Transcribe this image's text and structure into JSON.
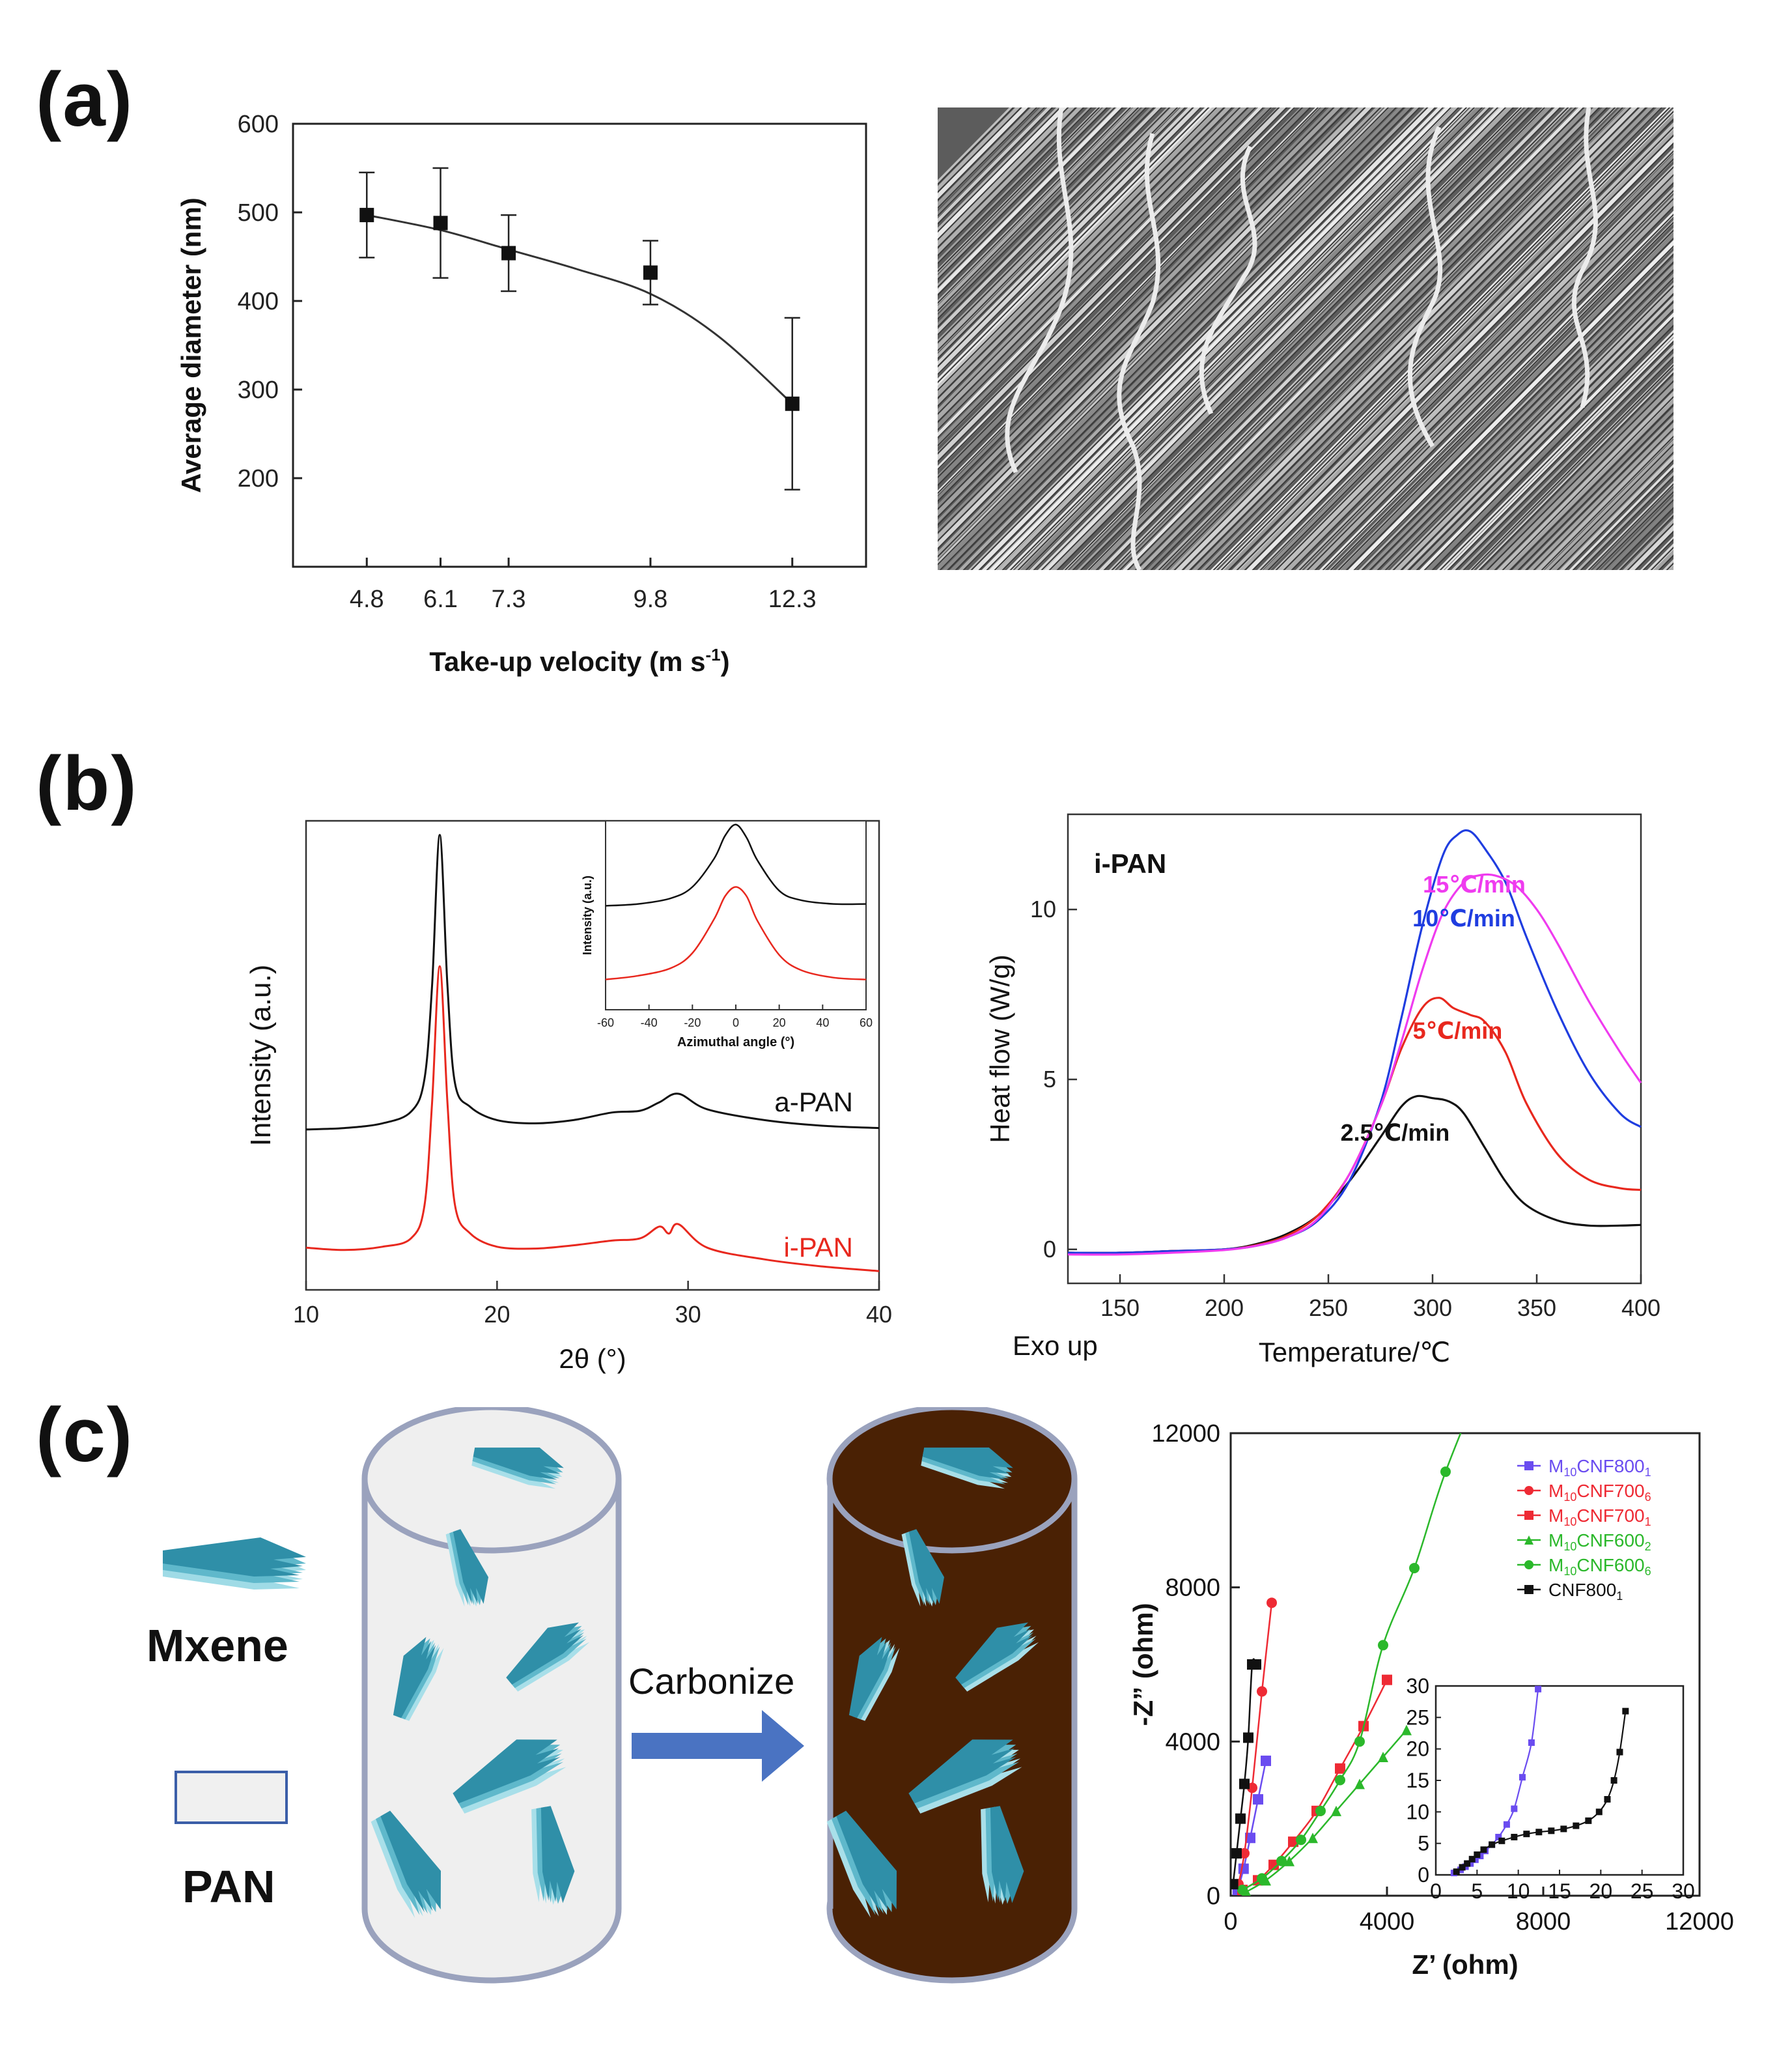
{
  "labels": {
    "a": "(a)",
    "b": "(b)",
    "c": "(c)"
  },
  "chart_data": [
    {
      "id": "diameter",
      "type": "scatter",
      "xlabel": "Take-up velocity (m s",
      "xlabel_sup": "-1",
      "xlabel_end": ")",
      "ylabel": "Average diameter (nm)",
      "xlim": [
        3.5,
        13.6
      ],
      "ylim": [
        100,
        600
      ],
      "xticks": [
        4.8,
        6.1,
        7.3,
        9.8,
        12.3
      ],
      "xtick_labels": [
        "4.8",
        "6.1",
        "7.3",
        "9.8",
        "12.3"
      ],
      "yticks": [
        200,
        300,
        400,
        500,
        600
      ],
      "x": [
        4.8,
        6.1,
        7.3,
        9.8,
        12.3
      ],
      "y": [
        497,
        488,
        454,
        432,
        284
      ],
      "err": [
        48,
        62,
        43,
        36,
        97
      ],
      "fit_x": [
        4.8,
        6.1,
        7.3,
        8.5,
        9.8,
        11.0,
        12.3
      ],
      "fit_y": [
        497,
        480,
        458,
        436,
        408,
        360,
        284
      ]
    },
    {
      "id": "xrd",
      "type": "line",
      "xlabel": "2θ (°)",
      "ylabel": "Intensity (a.u.)",
      "xlim": [
        10,
        40
      ],
      "ylim": [
        0,
        10
      ],
      "xticks": [
        10,
        20,
        30,
        40
      ],
      "series": [
        {
          "name": "a-PAN",
          "color": "#111111",
          "x": [
            10,
            12,
            14,
            15.5,
            16.2,
            16.6,
            17.0,
            17.4,
            17.8,
            18.6,
            20,
            22,
            24,
            26,
            27.5,
            28.5,
            29.5,
            31,
            34,
            37,
            40
          ],
          "y": [
            3.42,
            3.45,
            3.55,
            3.8,
            4.5,
            6.5,
            9.7,
            6.5,
            4.4,
            3.9,
            3.62,
            3.55,
            3.62,
            3.78,
            3.82,
            4.0,
            4.18,
            3.85,
            3.62,
            3.5,
            3.45
          ]
        },
        {
          "name": "i-PAN",
          "color": "#e8281e",
          "x": [
            10,
            12,
            14,
            15.5,
            16.2,
            16.6,
            17.0,
            17.4,
            17.8,
            18.6,
            20,
            22,
            24,
            26,
            27.5,
            28.5,
            29.0,
            29.5,
            31,
            34,
            37,
            40
          ],
          "y": [
            0.9,
            0.85,
            0.92,
            1.1,
            1.8,
            4.0,
            6.9,
            4.0,
            1.8,
            1.2,
            0.92,
            0.88,
            0.95,
            1.05,
            1.1,
            1.35,
            1.2,
            1.4,
            0.9,
            0.65,
            0.5,
            0.4
          ]
        }
      ]
    },
    {
      "id": "xrd-inset",
      "type": "line",
      "xlabel": "Azimuthal angle (°)",
      "ylabel": "Intensity (a.u.)",
      "xlim": [
        -60,
        60
      ],
      "ylim": [
        0,
        10
      ],
      "xticks": [
        -60,
        -40,
        -20,
        0,
        20,
        40,
        60
      ],
      "series": [
        {
          "name": "a-PAN",
          "color": "#111111",
          "x": [
            -60,
            -45,
            -30,
            -20,
            -10,
            -5,
            0,
            5,
            10,
            20,
            30,
            45,
            60
          ],
          "y": [
            5.5,
            5.6,
            5.9,
            6.5,
            8.0,
            9.2,
            9.8,
            9.1,
            7.9,
            6.3,
            5.8,
            5.6,
            5.6
          ]
        },
        {
          "name": "i-PAN",
          "color": "#e8281e",
          "x": [
            -60,
            -45,
            -30,
            -20,
            -10,
            -5,
            0,
            5,
            10,
            20,
            30,
            45,
            60
          ],
          "y": [
            1.6,
            1.8,
            2.2,
            3.0,
            4.8,
            6.0,
            6.5,
            6.0,
            4.7,
            2.9,
            2.1,
            1.7,
            1.6
          ]
        }
      ]
    },
    {
      "id": "dsc",
      "type": "line",
      "title": "i-PAN",
      "xlabel": "Temperature/℃",
      "ylabel": "Heat flow (W/g)",
      "footnote": "Exo up",
      "xlim": [
        125,
        400
      ],
      "ylim": [
        -1,
        12.8
      ],
      "xticks": [
        150,
        200,
        250,
        300,
        350,
        400
      ],
      "yticks": [
        0,
        5,
        10
      ],
      "series": [
        {
          "name": "2.5℃/min",
          "color": "#111111",
          "x": [
            125,
            150,
            175,
            200,
            215,
            230,
            245,
            260,
            275,
            285,
            292,
            300,
            308,
            315,
            325,
            335,
            345,
            360,
            375,
            390,
            400
          ],
          "y": [
            -0.1,
            -0.1,
            -0.05,
            0.0,
            0.15,
            0.45,
            1.0,
            2.0,
            3.3,
            4.2,
            4.5,
            4.45,
            4.35,
            4.0,
            3.0,
            2.0,
            1.3,
            0.85,
            0.7,
            0.7,
            0.72
          ]
        },
        {
          "name": "5℃/min",
          "color": "#e8281e",
          "x": [
            125,
            150,
            175,
            200,
            215,
            230,
            245,
            260,
            275,
            285,
            295,
            303,
            310,
            318,
            325,
            335,
            345,
            360,
            375,
            390,
            400
          ],
          "y": [
            -0.1,
            -0.1,
            -0.05,
            0.0,
            0.12,
            0.4,
            1.0,
            2.2,
            4.2,
            5.9,
            7.1,
            7.4,
            7.1,
            6.9,
            6.7,
            5.8,
            4.3,
            2.8,
            2.05,
            1.8,
            1.75
          ]
        },
        {
          "name": "10℃/min",
          "color": "#1f3de0",
          "x": [
            125,
            150,
            175,
            200,
            215,
            230,
            245,
            260,
            275,
            285,
            295,
            305,
            312,
            318,
            325,
            335,
            345,
            360,
            375,
            390,
            400
          ],
          "y": [
            -0.1,
            -0.1,
            -0.05,
            0.0,
            0.1,
            0.35,
            0.85,
            2.0,
            4.3,
            6.8,
            9.5,
            11.6,
            12.2,
            12.3,
            11.8,
            10.8,
            9.2,
            7.0,
            5.2,
            4.0,
            3.6
          ]
        },
        {
          "name": "15℃/min",
          "color": "#ef3bef",
          "x": [
            125,
            150,
            175,
            200,
            215,
            230,
            245,
            260,
            275,
            285,
            295,
            305,
            315,
            322,
            330,
            340,
            350,
            360,
            375,
            390,
            400
          ],
          "y": [
            -0.15,
            -0.15,
            -0.1,
            -0.02,
            0.1,
            0.35,
            0.9,
            2.2,
            4.2,
            6.1,
            8.2,
            9.9,
            10.8,
            11.0,
            11.0,
            10.7,
            10.0,
            9.0,
            7.3,
            5.8,
            4.9
          ]
        }
      ]
    },
    {
      "id": "eis",
      "type": "scatter",
      "xlabel": "Z’ (ohm)",
      "ylabel": "-Z” (ohm)",
      "xlim": [
        0,
        12000
      ],
      "ylim": [
        0,
        12000
      ],
      "xticks": [
        0,
        4000,
        8000,
        12000
      ],
      "yticks": [
        0,
        4000,
        8000,
        12000
      ],
      "series": [
        {
          "name": "M",
          "sub": "10",
          "mid": "CNF800",
          "sub2": "1",
          "color": "#6a4cf0",
          "marker": "square",
          "x": [
            180,
            330,
            500,
            700,
            900
          ],
          "y": [
            150,
            700,
            1500,
            2500,
            3500
          ]
        },
        {
          "name": "M",
          "sub": "10",
          "mid": "CNF700",
          "sub2": "6",
          "color": "#ee2a34",
          "marker": "circle",
          "x": [
            200,
            350,
            550,
            800,
            1050
          ],
          "y": [
            300,
            1100,
            2800,
            5300,
            7600
          ]
        },
        {
          "name": "M",
          "sub": "10",
          "mid": "CNF700",
          "sub2": "1",
          "color": "#ee2a34",
          "marker": "square",
          "x": [
            300,
            700,
            1100,
            1600,
            2200,
            2800,
            3400,
            4000
          ],
          "y": [
            150,
            400,
            800,
            1400,
            2200,
            3300,
            4400,
            5600
          ]
        },
        {
          "name": "M",
          "sub": "10",
          "mid": "CNF600",
          "sub2": "2",
          "color": "#2bb82b",
          "marker": "triangle",
          "x": [
            400,
            900,
            1500,
            2100,
            2700,
            3300,
            3900,
            4500
          ],
          "y": [
            100,
            400,
            900,
            1500,
            2200,
            2900,
            3600,
            4300
          ]
        },
        {
          "name": "M",
          "sub": "10",
          "mid": "CNF600",
          "sub2": "6",
          "color": "#2bb82b",
          "marker": "circle",
          "x": [
            300,
            800,
            1300,
            1800,
            2300,
            2800,
            3300,
            3900,
            4700,
            5500
          ],
          "y": [
            150,
            450,
            900,
            1450,
            2200,
            3000,
            4000,
            6500,
            8500,
            11000
          ]
        },
        {
          "name": "CNF800",
          "sub": "1",
          "mid": "",
          "sub2": "",
          "color": "#111111",
          "marker": "square",
          "x": [
            60,
            150,
            250,
            350,
            450,
            550,
            650
          ],
          "y": [
            300,
            1100,
            2000,
            2900,
            4100,
            6000,
            6000
          ]
        }
      ],
      "inset": {
        "xlim": [
          0,
          30
        ],
        "ylim": [
          0,
          30
        ],
        "xticks": [
          0,
          5,
          10,
          15,
          20,
          25,
          30
        ],
        "yticks": [
          0,
          5,
          10,
          15,
          20,
          25,
          30
        ],
        "series": [
          {
            "name": "M10CNF800_1",
            "color": "#6a4cf0",
            "x": [
              2.2,
              3.0,
              3.6,
              4.2,
              4.8,
              5.4,
              6.0,
              6.8,
              7.6,
              8.6,
              9.5,
              10.5,
              11.6,
              12.4
            ],
            "y": [
              0.3,
              0.8,
              1.3,
              1.8,
              2.4,
              3.0,
              3.8,
              4.8,
              6.0,
              8.0,
              10.5,
              15.5,
              21.0,
              29.5
            ]
          },
          {
            "name": "CNF800_1",
            "color": "#111111",
            "x": [
              2.5,
              3.2,
              3.8,
              4.4,
              5.0,
              5.8,
              6.8,
              8.0,
              9.5,
              11.0,
              12.5,
              14.0,
              15.5,
              17.0,
              18.5,
              19.8,
              20.8,
              21.6,
              22.3,
              23.0
            ],
            "y": [
              0.5,
              1.2,
              1.8,
              2.5,
              3.2,
              4.0,
              4.8,
              5.4,
              6.0,
              6.5,
              6.8,
              7.0,
              7.3,
              7.8,
              8.6,
              10.0,
              12.0,
              15.0,
              19.5,
              26.0
            ]
          }
        ]
      }
    }
  ],
  "schematic": {
    "legend_mxene": "Mxene",
    "legend_pan": "PAN",
    "arrow_label": "Carbonize",
    "colors": {
      "pan": "#efefef",
      "carbon": "#4a2104",
      "outline": "#9aa2bd",
      "arrow": "#4a73c2",
      "flake": "#3b9db2"
    }
  }
}
